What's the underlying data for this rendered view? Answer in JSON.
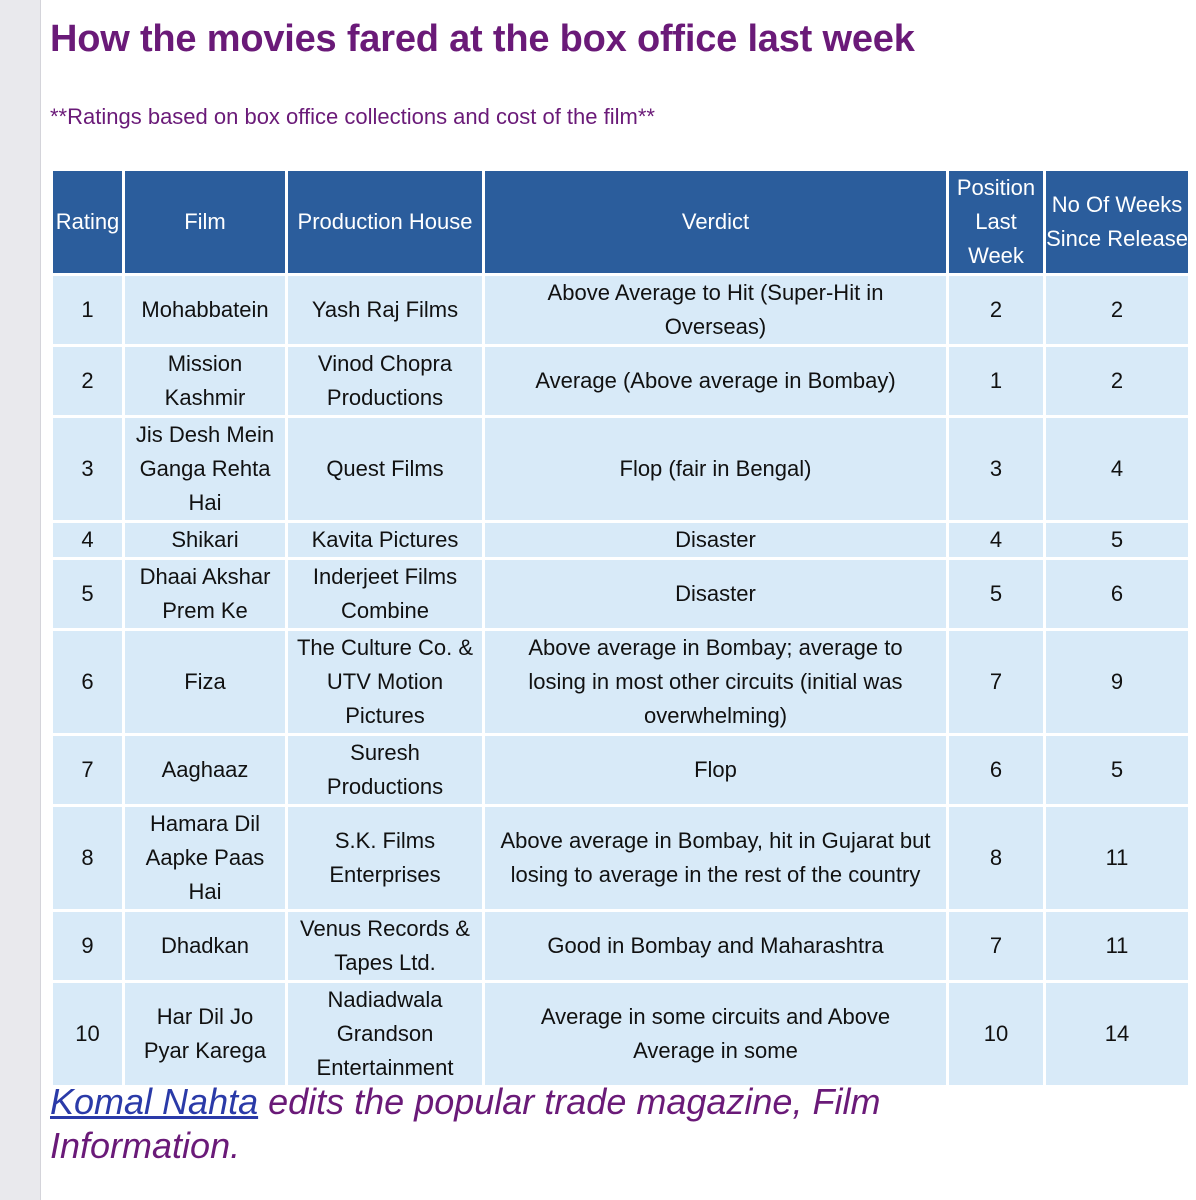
{
  "title": "How the movies fared at the box office last week",
  "subtitle": "**Ratings based on box office collections and cost of the film**",
  "table": {
    "headers": [
      "Rating",
      "Film",
      "Production House",
      "Verdict",
      "Position Last Week",
      "No Of Weeks Since Release"
    ],
    "rows": [
      [
        "1",
        "Mohabbatein",
        "Yash Raj Films",
        "Above Average to Hit (Super-Hit in Overseas)",
        "2",
        "2"
      ],
      [
        "2",
        "Mission Kashmir",
        "Vinod Chopra Productions",
        "Average (Above average in Bombay)",
        "1",
        "2"
      ],
      [
        "3",
        "Jis Desh Mein Ganga Rehta Hai",
        "Quest Films",
        "Flop (fair in Bengal)",
        "3",
        "4"
      ],
      [
        "4",
        "Shikari",
        "Kavita Pictures",
        "Disaster",
        "4",
        "5"
      ],
      [
        "5",
        "Dhaai Akshar Prem Ke",
        "Inderjeet Films Combine",
        "Disaster",
        "5",
        "6"
      ],
      [
        "6",
        "Fiza",
        "The Culture Co. & UTV Motion Pictures",
        "Above average in Bombay; average to losing in most other circuits (initial was overwhelming)",
        "7",
        "9"
      ],
      [
        "7",
        "Aaghaaz",
        "Suresh Productions",
        "Flop",
        "6",
        "5"
      ],
      [
        "8",
        "Hamara Dil Aapke Paas Hai",
        "S.K. Films Enterprises",
        "Above average in Bombay, hit in Gujarat but losing to average in the rest of the country",
        "8",
        "11"
      ],
      [
        "9",
        "Dhadkan",
        "Venus Records & Tapes Ltd.",
        "Good in Bombay and Maharashtra",
        "7",
        "11"
      ],
      [
        "10",
        "Har Dil Jo Pyar Karega",
        "Nadiadwala Grandson Entertainment",
        "Average in some circuits and Above Average in some",
        "10",
        "14"
      ]
    ]
  },
  "footer": {
    "author_link": "Komal Nahta",
    "text": " edits the popular trade magazine, Film Information."
  },
  "colors": {
    "heading": "#6a1a78",
    "header_bg": "#2b5d9c",
    "cell_bg": "#d8eaf8",
    "link": "#2a3aa8"
  }
}
